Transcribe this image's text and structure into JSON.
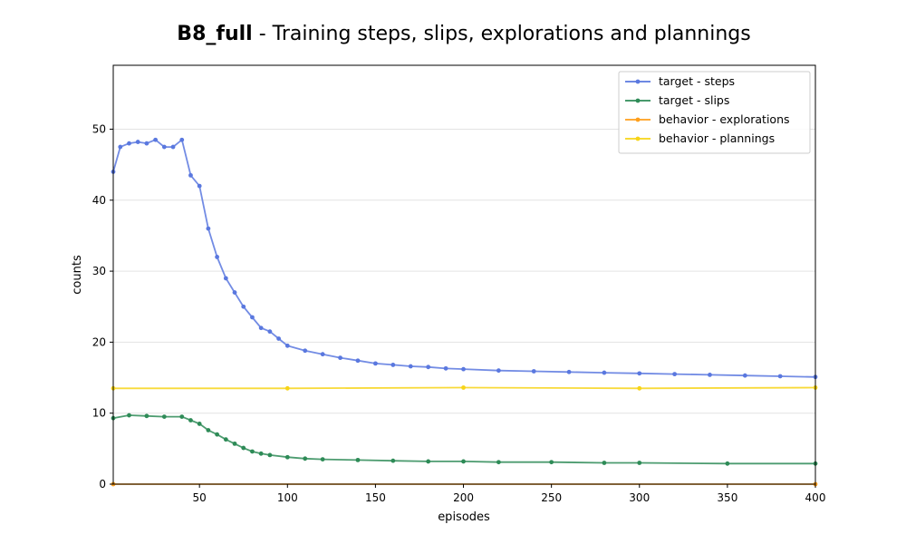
{
  "chart_data": {
    "type": "line",
    "title_bold": "B8_full",
    "title_rest": " - Training steps, slips, explorations and plannings",
    "xlabel": "episodes",
    "ylabel": "counts",
    "xlim": [
      1,
      400
    ],
    "ylim": [
      0,
      59
    ],
    "xticks": [
      50,
      100,
      150,
      200,
      250,
      300,
      350,
      400
    ],
    "yticks": [
      0,
      10,
      20,
      30,
      40,
      50
    ],
    "grid": "horizontal",
    "legend_position": "top-right",
    "series": [
      {
        "name": "target - steps",
        "color": "#5a78df",
        "x": [
          1,
          5,
          10,
          15,
          20,
          25,
          30,
          35,
          40,
          45,
          50,
          55,
          60,
          65,
          70,
          75,
          80,
          85,
          90,
          95,
          100,
          110,
          120,
          130,
          140,
          150,
          160,
          170,
          180,
          190,
          200,
          220,
          240,
          260,
          280,
          300,
          320,
          340,
          360,
          380,
          400
        ],
        "values": [
          44,
          47.5,
          48,
          48.2,
          48,
          48.5,
          47.5,
          47.5,
          48.5,
          43.5,
          42,
          36,
          32,
          29,
          27,
          25,
          23.5,
          22,
          21.5,
          20.5,
          19.5,
          18.8,
          18.3,
          17.8,
          17.4,
          17,
          16.8,
          16.6,
          16.5,
          16.3,
          16.2,
          16,
          15.9,
          15.8,
          15.7,
          15.6,
          15.5,
          15.4,
          15.3,
          15.2,
          15.1
        ]
      },
      {
        "name": "target - slips",
        "color": "#2e8b57",
        "x": [
          1,
          10,
          20,
          30,
          40,
          45,
          50,
          55,
          60,
          65,
          70,
          75,
          80,
          85,
          90,
          100,
          110,
          120,
          140,
          160,
          180,
          200,
          220,
          250,
          280,
          300,
          350,
          400
        ],
        "values": [
          9.3,
          9.7,
          9.6,
          9.5,
          9.5,
          9.0,
          8.5,
          7.6,
          7.0,
          6.3,
          5.7,
          5.1,
          4.6,
          4.3,
          4.1,
          3.8,
          3.6,
          3.5,
          3.4,
          3.3,
          3.2,
          3.2,
          3.1,
          3.1,
          3.0,
          3.0,
          2.9,
          2.9
        ]
      },
      {
        "name": "behavior - explorations",
        "color": "#ff9f1c",
        "x": [
          1,
          400
        ],
        "values": [
          0,
          0
        ]
      },
      {
        "name": "behavior - plannings",
        "color": "#f7d417",
        "x": [
          1,
          100,
          200,
          300,
          400
        ],
        "values": [
          13.5,
          13.5,
          13.6,
          13.5,
          13.6
        ]
      }
    ]
  }
}
